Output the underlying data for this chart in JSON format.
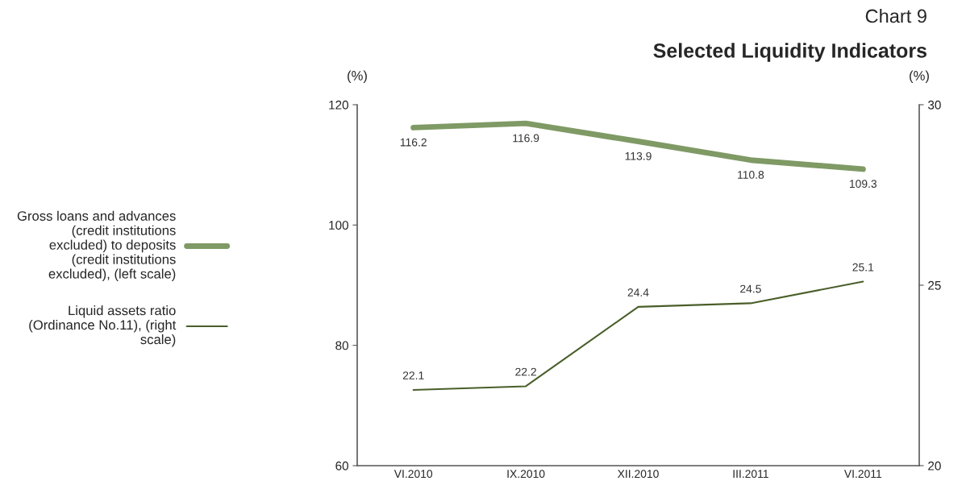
{
  "chart_data": {
    "type": "line",
    "title": "Selected Liquidity Indicators",
    "subtitle": "Chart 9",
    "ylabel": "(%)",
    "y2label": "(%)",
    "categories": [
      "VI.2010",
      "IX.2010",
      "XII.2010",
      "III.2011",
      "VI.2011"
    ],
    "series": [
      {
        "name": "Gross loans and advances (credit institutions excluded) to deposits (credit institutions excluded), (left scale)",
        "color": "#7f9a65",
        "values": [
          116.2,
          116.9,
          113.9,
          110.8,
          109.3
        ]
      },
      {
        "name": "Liquid assets ratio (Ordinance No.11), (right scale)",
        "color": "#4a5e2a",
        "values": [
          22.1,
          22.2,
          24.4,
          24.5,
          25.1
        ],
        "axis": "y2"
      }
    ],
    "ylim": [
      60,
      120
    ],
    "yticks": [
      60,
      80,
      100,
      120
    ],
    "y2lim": [
      20,
      30
    ],
    "y2ticks": [
      20,
      25,
      30
    ],
    "data_labels": true,
    "grid": false,
    "legend": "left",
    "marker": "none",
    "line_style": "solid"
  }
}
